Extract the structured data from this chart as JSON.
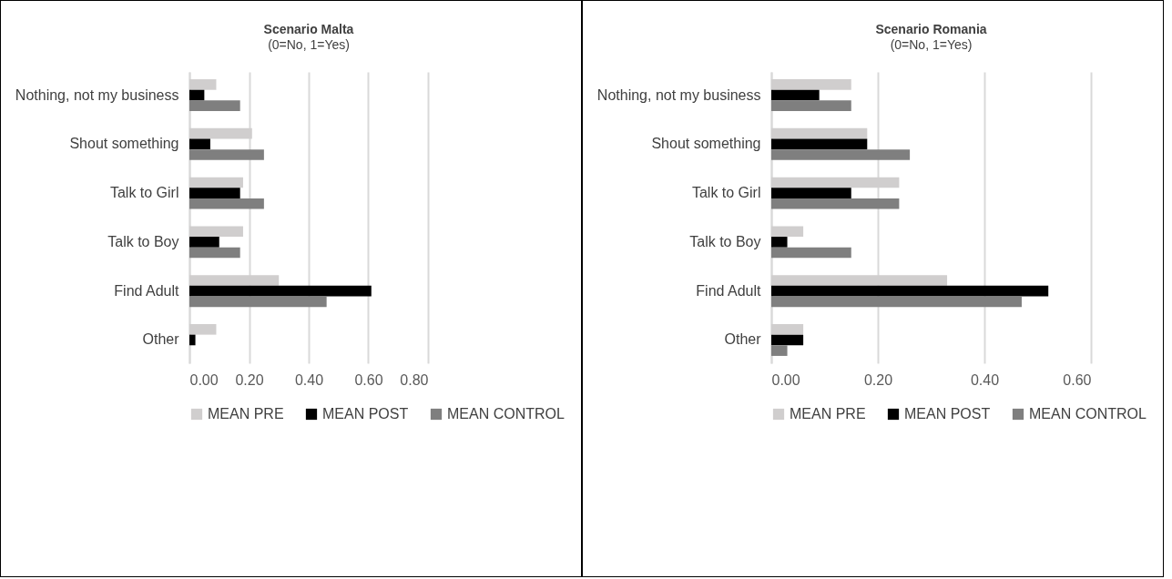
{
  "chart_data": [
    {
      "type": "bar",
      "orientation": "horizontal",
      "title": "Scenario Malta",
      "subtitle": "(0=No, 1=Yes)",
      "categories": [
        "Nothing, not my business",
        "Shout something",
        "Talk to Girl",
        "Talk to Boy",
        "Find Adult",
        "Other"
      ],
      "series": [
        {
          "name": "MEAN PRE",
          "color": "#d0cece",
          "values": [
            0.09,
            0.21,
            0.18,
            0.18,
            0.3,
            0.09
          ]
        },
        {
          "name": "MEAN POST",
          "color": "#000000",
          "values": [
            0.05,
            0.07,
            0.17,
            0.1,
            0.61,
            0.02
          ]
        },
        {
          "name": "MEAN CONTROL",
          "color": "#7f7f7f",
          "values": [
            0.17,
            0.25,
            0.25,
            0.17,
            0.46,
            0
          ]
        }
      ],
      "xlim": [
        0,
        0.8
      ],
      "xticks": [
        {
          "value": 0,
          "label": "0.00"
        },
        {
          "value": 0.2,
          "label": "0.20"
        },
        {
          "value": 0.4,
          "label": "0.40"
        },
        {
          "value": 0.6,
          "label": "0.60"
        },
        {
          "value": 0.8,
          "label": "0.80"
        }
      ],
      "grid": "x",
      "legend": "bottom"
    },
    {
      "type": "bar",
      "orientation": "horizontal",
      "title": "Scenario Romania",
      "subtitle": "(0=No, 1=Yes)",
      "categories": [
        "Nothing, not my business",
        "Shout something",
        "Talk to Girl",
        "Talk to Boy",
        "Find Adult",
        "Other"
      ],
      "series": [
        {
          "name": "MEAN PRE",
          "color": "#d0cece",
          "values": [
            0.15,
            0.18,
            0.24,
            0.06,
            0.33,
            0.06
          ]
        },
        {
          "name": "MEAN POST",
          "color": "#000000",
          "values": [
            0.09,
            0.18,
            0.15,
            0.03,
            0.52,
            0.06
          ]
        },
        {
          "name": "MEAN CONTROL",
          "color": "#7f7f7f",
          "values": [
            0.15,
            0.26,
            0.24,
            0.15,
            0.47,
            0.03
          ]
        }
      ],
      "xlim": [
        0,
        0.6
      ],
      "xticks": [
        {
          "value": 0,
          "label": "0.00"
        },
        {
          "value": 0.2,
          "label": "0.20"
        },
        {
          "value": 0.4,
          "label": "0.40"
        },
        {
          "value": 0.6,
          "label": "0.60"
        }
      ],
      "grid": "x",
      "legend": "bottom"
    }
  ]
}
